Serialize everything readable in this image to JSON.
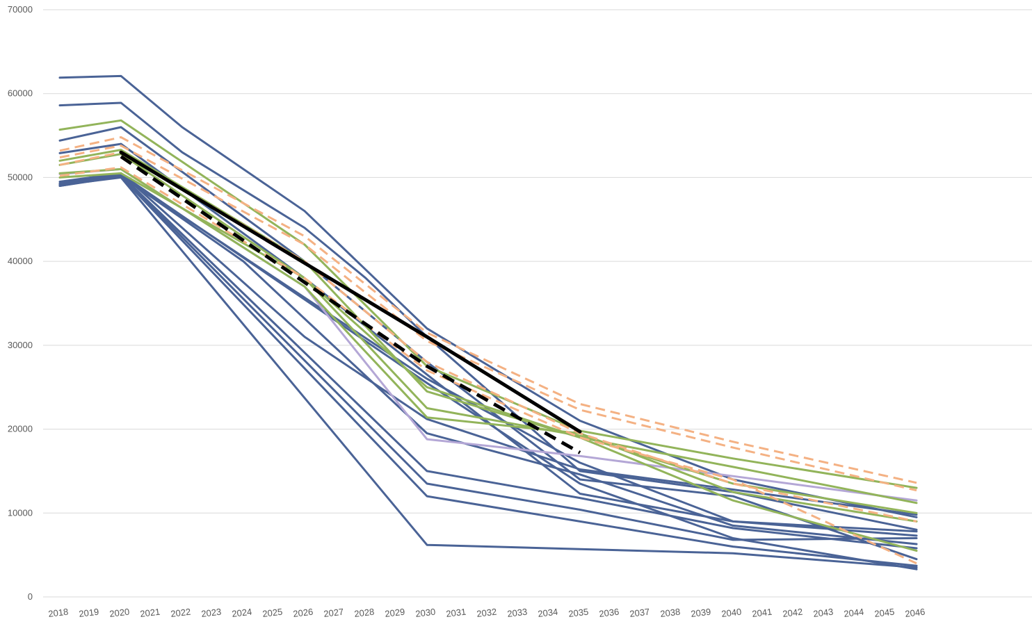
{
  "chart_data": {
    "type": "line",
    "title": "",
    "xlabel": "",
    "ylabel": "",
    "ylim": [
      0,
      70000
    ],
    "yticks": [
      0,
      10000,
      20000,
      30000,
      40000,
      50000,
      60000,
      70000
    ],
    "grid": true,
    "legend": "none",
    "colors": {
      "blue": "#4a6396",
      "green": "#92b45a",
      "orange": "#f4b183",
      "purple": "#b4a7d6",
      "black": "#000000"
    },
    "x": [
      2018,
      2019,
      2020,
      2021,
      2022,
      2023,
      2024,
      2025,
      2026,
      2027,
      2028,
      2029,
      2030,
      2031,
      2032,
      2033,
      2034,
      2035,
      2036,
      2037,
      2038,
      2039,
      2040,
      2041,
      2042,
      2043,
      2044,
      2045,
      2046
    ],
    "series": [
      {
        "color": "blue",
        "style": "solid",
        "points": [
          [
            2018,
            61900
          ],
          [
            2020,
            62100
          ],
          [
            2022,
            56000
          ],
          [
            2026,
            46000
          ],
          [
            2028,
            39000
          ],
          [
            2030,
            32000
          ],
          [
            2035,
            21000
          ],
          [
            2040,
            14000
          ],
          [
            2046,
            9500
          ]
        ]
      },
      {
        "color": "blue",
        "style": "solid",
        "points": [
          [
            2018,
            58600
          ],
          [
            2020,
            58900
          ],
          [
            2022,
            53000
          ],
          [
            2026,
            44000
          ],
          [
            2028,
            38000
          ],
          [
            2030,
            31000
          ],
          [
            2035,
            15000
          ],
          [
            2040,
            12500
          ],
          [
            2046,
            8000
          ]
        ]
      },
      {
        "color": "blue",
        "style": "solid",
        "points": [
          [
            2018,
            54400
          ],
          [
            2020,
            56000
          ],
          [
            2026,
            40000
          ],
          [
            2030,
            28000
          ],
          [
            2035,
            14000
          ],
          [
            2040,
            12000
          ],
          [
            2046,
            4500
          ]
        ]
      },
      {
        "color": "blue",
        "style": "solid",
        "points": [
          [
            2018,
            52900
          ],
          [
            2020,
            54000
          ],
          [
            2026,
            38000
          ],
          [
            2030,
            26500
          ],
          [
            2035,
            12300
          ],
          [
            2040,
            9000
          ],
          [
            2046,
            7800
          ]
        ]
      },
      {
        "color": "blue",
        "style": "solid",
        "points": [
          [
            2018,
            49200
          ],
          [
            2020,
            50400
          ],
          [
            2030,
            25500
          ],
          [
            2035,
            13500
          ],
          [
            2040,
            7000
          ],
          [
            2046,
            3300
          ]
        ]
      },
      {
        "color": "blue",
        "style": "solid",
        "points": [
          [
            2018,
            49000
          ],
          [
            2020,
            50200
          ],
          [
            2024,
            40000
          ],
          [
            2030,
            19500
          ],
          [
            2035,
            14600
          ],
          [
            2040,
            8500
          ],
          [
            2046,
            6300
          ]
        ]
      },
      {
        "color": "blue",
        "style": "solid",
        "points": [
          [
            2018,
            49500
          ],
          [
            2020,
            50500
          ],
          [
            2026,
            31000
          ],
          [
            2030,
            21200
          ],
          [
            2035,
            15200
          ],
          [
            2040,
            12800
          ],
          [
            2046,
            9800
          ]
        ]
      },
      {
        "color": "blue",
        "style": "solid",
        "points": [
          [
            2018,
            49300
          ],
          [
            2020,
            50300
          ],
          [
            2030,
            15000
          ],
          [
            2035,
            11800
          ],
          [
            2040,
            8200
          ],
          [
            2046,
            5800
          ]
        ]
      },
      {
        "color": "blue",
        "style": "solid",
        "points": [
          [
            2018,
            49100
          ],
          [
            2020,
            50200
          ],
          [
            2030,
            13500
          ],
          [
            2035,
            10400
          ],
          [
            2040,
            6800
          ],
          [
            2046,
            7000
          ]
        ]
      },
      {
        "color": "blue",
        "style": "solid",
        "points": [
          [
            2018,
            49000
          ],
          [
            2020,
            50100
          ],
          [
            2030,
            12000
          ],
          [
            2035,
            9000
          ],
          [
            2040,
            6000
          ],
          [
            2046,
            3700
          ]
        ]
      },
      {
        "color": "blue",
        "style": "solid",
        "points": [
          [
            2018,
            49100
          ],
          [
            2020,
            50000
          ],
          [
            2030,
            6200
          ],
          [
            2035,
            5700
          ],
          [
            2040,
            5200
          ],
          [
            2046,
            3500
          ]
        ]
      },
      {
        "color": "blue",
        "style": "solid",
        "points": [
          [
            2018,
            49200
          ],
          [
            2020,
            50200
          ],
          [
            2030,
            26000
          ],
          [
            2035,
            16000
          ],
          [
            2040,
            9000
          ],
          [
            2046,
            7300
          ]
        ]
      },
      {
        "color": "green",
        "style": "solid",
        "points": [
          [
            2018,
            55700
          ],
          [
            2020,
            56800
          ],
          [
            2026,
            42000
          ],
          [
            2030,
            27500
          ],
          [
            2035,
            19800
          ],
          [
            2040,
            16500
          ],
          [
            2046,
            13000
          ]
        ]
      },
      {
        "color": "green",
        "style": "solid",
        "points": [
          [
            2018,
            52000
          ],
          [
            2020,
            53300
          ],
          [
            2026,
            40000
          ],
          [
            2030,
            24500
          ],
          [
            2035,
            19000
          ],
          [
            2040,
            15500
          ],
          [
            2046,
            11200
          ]
        ]
      },
      {
        "color": "green",
        "style": "solid",
        "points": [
          [
            2018,
            51500
          ],
          [
            2020,
            52800
          ],
          [
            2026,
            38000
          ],
          [
            2030,
            22500
          ],
          [
            2035,
            19200
          ],
          [
            2040,
            13500
          ],
          [
            2046,
            10000
          ]
        ]
      },
      {
        "color": "green",
        "style": "solid",
        "points": [
          [
            2018,
            50500
          ],
          [
            2020,
            51000
          ],
          [
            2026,
            37000
          ],
          [
            2030,
            21400
          ],
          [
            2035,
            19500
          ],
          [
            2040,
            12500
          ],
          [
            2046,
            9000
          ]
        ]
      },
      {
        "color": "green",
        "style": "solid",
        "points": [
          [
            2018,
            50000
          ],
          [
            2020,
            50500
          ],
          [
            2026,
            38000
          ],
          [
            2030,
            25000
          ],
          [
            2035,
            19000
          ],
          [
            2040,
            11500
          ],
          [
            2046,
            5500
          ]
        ]
      },
      {
        "color": "orange",
        "style": "dashed",
        "points": [
          [
            2018,
            53200
          ],
          [
            2020,
            54800
          ],
          [
            2026,
            43000
          ],
          [
            2030,
            31500
          ],
          [
            2035,
            23000
          ],
          [
            2040,
            18500
          ],
          [
            2046,
            13600
          ]
        ]
      },
      {
        "color": "orange",
        "style": "dashed",
        "points": [
          [
            2018,
            52400
          ],
          [
            2020,
            53800
          ],
          [
            2026,
            42000
          ],
          [
            2030,
            30500
          ],
          [
            2035,
            22300
          ],
          [
            2040,
            17800
          ],
          [
            2046,
            12700
          ]
        ]
      },
      {
        "color": "orange",
        "style": "dashed",
        "points": [
          [
            2018,
            51500
          ],
          [
            2020,
            53000
          ],
          [
            2026,
            40000
          ],
          [
            2030,
            28000
          ],
          [
            2035,
            19500
          ],
          [
            2040,
            13500
          ],
          [
            2046,
            9000
          ]
        ]
      },
      {
        "color": "orange",
        "style": "dashed",
        "points": [
          [
            2018,
            50200
          ],
          [
            2020,
            51200
          ],
          [
            2026,
            38000
          ],
          [
            2030,
            27000
          ],
          [
            2035,
            19000
          ],
          [
            2040,
            14000
          ],
          [
            2046,
            4000
          ]
        ]
      },
      {
        "color": "purple",
        "style": "solid",
        "points": [
          [
            2018,
            50400
          ],
          [
            2020,
            51000
          ],
          [
            2026,
            37000
          ],
          [
            2030,
            18800
          ],
          [
            2035,
            16800
          ],
          [
            2040,
            14400
          ],
          [
            2046,
            11500
          ]
        ]
      },
      {
        "color": "black",
        "style": "solid-bold",
        "points": [
          [
            2020,
            53000
          ],
          [
            2030,
            31000
          ],
          [
            2035,
            19700
          ]
        ]
      },
      {
        "color": "black",
        "style": "dashed-bold",
        "points": [
          [
            2020,
            52500
          ],
          [
            2030,
            27500
          ],
          [
            2035,
            17200
          ]
        ]
      }
    ]
  }
}
